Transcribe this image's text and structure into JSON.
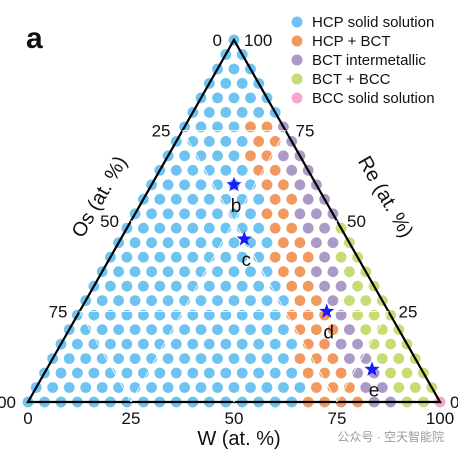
{
  "panel_label": "a",
  "watermark": "公众号 · 空天智能院",
  "chart_data": {
    "type": "ternary-scatter",
    "components": [
      "W",
      "Re",
      "Os"
    ],
    "axes": {
      "bottom": {
        "label": "W (at. %)",
        "ticks": [
          "0",
          "25",
          "50",
          "75",
          "100"
        ]
      },
      "right": {
        "label": "Re (at. %)",
        "ticks": [
          "100",
          "75",
          "50",
          "25",
          "0"
        ]
      },
      "left": {
        "label": "Os (at. %)",
        "ticks": [
          "0",
          "25",
          "50",
          "75",
          "100"
        ]
      }
    },
    "grid_step": 4,
    "legend": [
      {
        "name": "HCP solid solution",
        "color": "#6ec3f0"
      },
      {
        "name": "HCP + BCT",
        "color": "#f2995f"
      },
      {
        "name": "BCT intermetallic",
        "color": "#ab9ac7"
      },
      {
        "name": "BCT + BCC",
        "color": "#c6dc74"
      },
      {
        "name": "BCC solid solution",
        "color": "#f7a5cc"
      }
    ],
    "phase_boundaries_W_pct": [
      {
        "Re": 100,
        "HCP_BCT_start": 100
      },
      {
        "Re": 76,
        "HCP_BCT_start": 14,
        "BCT_start": 22
      },
      {
        "Re": 50,
        "HCP_BCT_start": 33,
        "BCT_start": 41,
        "BCT_BCC_start": 48
      },
      {
        "Re": 24,
        "HCP_BCT_start": 51,
        "BCT_start": 61,
        "BCT_BCC_start": 66
      },
      {
        "Re": 0,
        "HCP_BCT_start": 67,
        "BCT_start": 82,
        "BCT_BCC_start": 90,
        "BCC_start": 100
      }
    ],
    "markers": [
      {
        "label": "b",
        "W": 20,
        "Re": 60,
        "Os": 20,
        "color": "#1a1aff"
      },
      {
        "label": "c",
        "W": 30,
        "Re": 45,
        "Os": 25,
        "color": "#1a1aff"
      },
      {
        "label": "d",
        "W": 60,
        "Re": 25,
        "Os": 15,
        "color": "#1a1aff"
      },
      {
        "label": "e",
        "W": 79,
        "Re": 9,
        "Os": 12,
        "color": "#1a1aff"
      }
    ]
  }
}
